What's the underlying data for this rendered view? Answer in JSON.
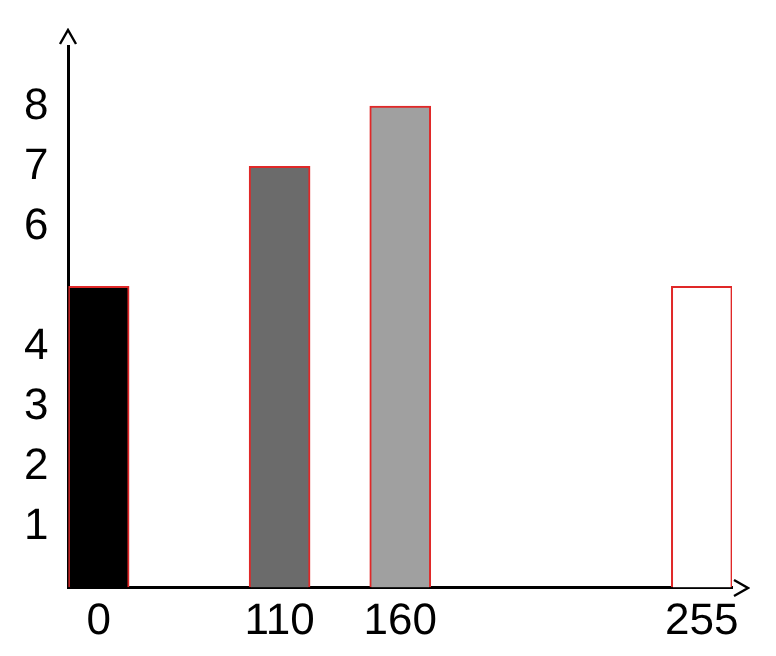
{
  "chart_data": {
    "type": "bar",
    "categories": [
      "0",
      null,
      null,
      "110",
      null,
      "160",
      null,
      null,
      null,
      null,
      "255"
    ],
    "values": [
      5,
      null,
      null,
      7,
      null,
      8,
      null,
      null,
      null,
      null,
      5
    ],
    "colors": [
      "#000000",
      "#ffffff",
      "#ffffff",
      "#6b6b6b",
      "#ffffff",
      "#a0a0a0",
      "#ffffff",
      "#ffffff",
      "#ffffff",
      "#ffffff",
      "#ffffff"
    ],
    "ylim": [
      0,
      9
    ],
    "yticks": [
      1,
      2,
      3,
      4,
      6,
      7,
      8
    ],
    "grid": false,
    "legend": false
  }
}
